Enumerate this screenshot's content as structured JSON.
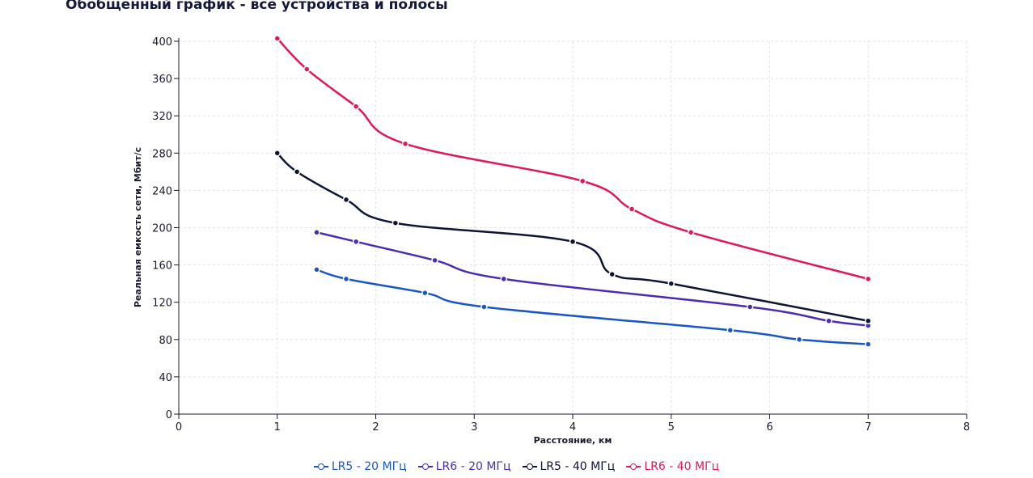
{
  "chart_data": {
    "type": "line",
    "title": "Обобщенный график - все устройства и полосы",
    "xlabel": "Расстояние, км",
    "ylabel": "Реальная емкость сети, Мбит/с",
    "xlim": [
      0,
      8
    ],
    "ylim": [
      0,
      400
    ],
    "xticks": [
      0,
      1,
      2,
      3,
      4,
      5,
      6,
      7,
      8
    ],
    "yticks": [
      0,
      40,
      80,
      120,
      160,
      200,
      240,
      280,
      320,
      360,
      400
    ],
    "grid": true,
    "legend_position": "bottom-center",
    "series": [
      {
        "name": "LR5 - 20 МГц",
        "color": "#1a56c8",
        "x": [
          1.4,
          1.7,
          2.5,
          3.1,
          5.6,
          6.3,
          7.0
        ],
        "y": [
          155,
          145,
          130,
          115,
          90,
          80,
          75
        ]
      },
      {
        "name": "LR6 - 20 МГц",
        "color": "#4b2bb3",
        "x": [
          1.4,
          1.8,
          2.6,
          3.3,
          5.8,
          6.6,
          7.0
        ],
        "y": [
          195,
          185,
          165,
          145,
          115,
          100,
          95
        ]
      },
      {
        "name": "LR5 - 40 МГц",
        "color": "#0e1436",
        "x": [
          1.0,
          1.2,
          1.7,
          2.2,
          4.0,
          4.4,
          5.0,
          7.0
        ],
        "y": [
          280,
          260,
          230,
          205,
          185,
          150,
          140,
          100
        ]
      },
      {
        "name": "LR6 - 40 МГц",
        "color": "#e0185a",
        "x": [
          1.0,
          1.3,
          1.8,
          2.3,
          4.1,
          4.6,
          5.2,
          7.0
        ],
        "y": [
          403,
          370,
          330,
          290,
          250,
          220,
          195,
          145
        ]
      }
    ]
  }
}
